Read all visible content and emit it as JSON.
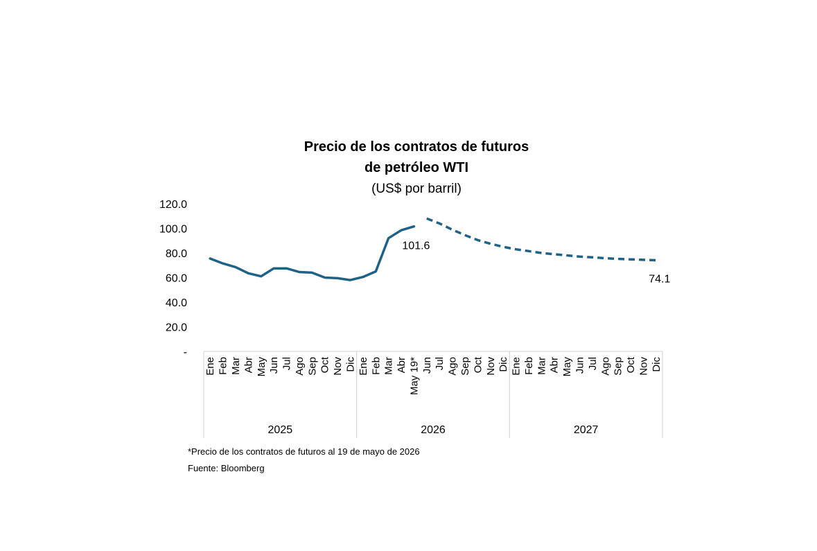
{
  "chart_data": {
    "type": "line",
    "title_lines": [
      "Precio de los contratos de futuros",
      "de petróleo WTI"
    ],
    "subtitle": "(US$ por barril)",
    "y_ticks": [
      "120.0",
      "100.0",
      "80.0",
      "60.0",
      "40.0",
      "20.0",
      "-"
    ],
    "ylim": [
      0,
      120
    ],
    "grid": false,
    "x_labels": [
      "Ene",
      "Feb",
      "Mar",
      "Abr",
      "May",
      "Jun",
      "Jul",
      "Ago",
      "Sep",
      "Oct",
      "Nov",
      "Dic",
      "Ene",
      "Feb",
      "Mar",
      "Abr",
      "May 19*",
      "Jun",
      "Jul",
      "Ago",
      "Sep",
      "Oct",
      "Nov",
      "Dic",
      "Ene",
      "Feb",
      "Mar",
      "Abr",
      "May",
      "Jun",
      "Jul",
      "Ago",
      "Sep",
      "Oct",
      "Nov",
      "Dic"
    ],
    "years": [
      "2025",
      "2026",
      "2027"
    ],
    "series": [
      {
        "style": "solid",
        "color": "#1f6288",
        "values": [
          75.5,
          71.5,
          68.5,
          63.5,
          61.0,
          67.5,
          67.5,
          64.5,
          64.0,
          60.0,
          59.5,
          58.0,
          60.5,
          65.0,
          92.0,
          98.5,
          101.6,
          null,
          null,
          null,
          null,
          null,
          null,
          null,
          null,
          null,
          null,
          null,
          null,
          null,
          null,
          null,
          null,
          null,
          null,
          null
        ]
      },
      {
        "style": "dashed",
        "color": "#1f6288",
        "values": [
          null,
          null,
          null,
          null,
          null,
          null,
          null,
          null,
          null,
          null,
          null,
          null,
          null,
          null,
          null,
          null,
          null,
          108.0,
          104.0,
          99.0,
          94.5,
          90.5,
          87.5,
          85.0,
          83.0,
          81.5,
          80.0,
          79.0,
          78.0,
          77.0,
          76.5,
          75.8,
          75.2,
          74.8,
          74.4,
          74.1
        ]
      }
    ],
    "data_labels": [
      "101.6",
      "74.1"
    ]
  },
  "footnote": "*Precio de los contratos de futuros al 19 de mayo de 2026",
  "source": "Fuente: Bloomberg"
}
